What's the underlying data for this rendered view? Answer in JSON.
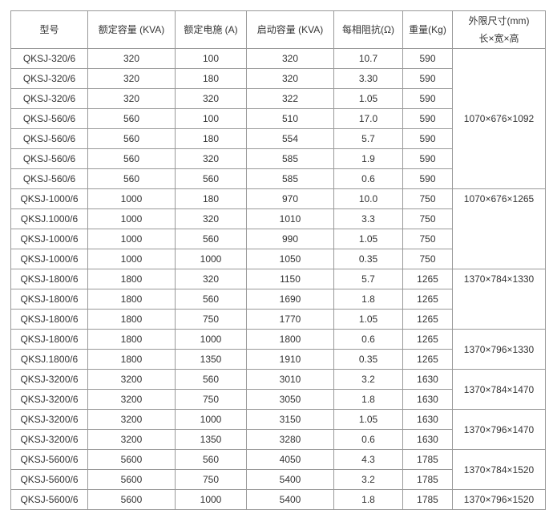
{
  "headers": [
    "型号",
    "额定容量 (KVA)",
    "额定电施 (A)",
    "启动容量 (KVA)",
    "每相阻抗(Ω)",
    "重量(Kg)"
  ],
  "dim_header": {
    "line1": "外限尺寸(mm)",
    "line2": "长×宽×高"
  },
  "rows": [
    [
      "QKSJ-320/6",
      "320",
      "100",
      "320",
      "10.7",
      "590"
    ],
    [
      "QKSJ-320/6",
      "320",
      "180",
      "320",
      "3.30",
      "590"
    ],
    [
      "QKSJ-320/6",
      "320",
      "320",
      "322",
      "1.05",
      "590"
    ],
    [
      "QKSJ-560/6",
      "560",
      "100",
      "510",
      "17.0",
      "590"
    ],
    [
      "QKSJ-560/6",
      "560",
      "180",
      "554",
      "5.7",
      "590"
    ],
    [
      "QKSJ-560/6",
      "560",
      "320",
      "585",
      "1.9",
      "590"
    ],
    [
      "QKSJ-560/6",
      "560",
      "560",
      "585",
      "0.6",
      "590"
    ],
    [
      "QKSJ-1000/6",
      "1000",
      "180",
      "970",
      "10.0",
      "750"
    ],
    [
      "QKSJ.1000/6",
      "1000",
      "320",
      "1010",
      "3.3",
      "750"
    ],
    [
      "QKSJ-1000/6",
      "1000",
      "560",
      "990",
      "1.05",
      "750"
    ],
    [
      "QKSJ-1000/6",
      "1000",
      "1000",
      "1050",
      "0.35",
      "750"
    ],
    [
      "QKSJ-1800/6",
      "1800",
      "320",
      "1150",
      "5.7",
      "1265"
    ],
    [
      "QKSJ-1800/6",
      "1800",
      "560",
      "1690",
      "1.8",
      "1265"
    ],
    [
      "QKSJ-1800/6",
      "1800",
      "750",
      "1770",
      "1.05",
      "1265"
    ],
    [
      "QKSJ-1800/6",
      "1800",
      "1000",
      "1800",
      "0.6",
      "1265"
    ],
    [
      "QKSJ.1800/6",
      "1800",
      "1350",
      "1910",
      "0.35",
      "1265"
    ],
    [
      "QKSJ-3200/6",
      "3200",
      "560",
      "3010",
      "3.2",
      "1630"
    ],
    [
      "QKSJ-3200/6",
      "3200",
      "750",
      "3050",
      "1.8",
      "1630"
    ],
    [
      "QKSJ-3200/6",
      "3200",
      "1000",
      "3150",
      "1.05",
      "1630"
    ],
    [
      "QKSJ-3200/6",
      "3200",
      "1350",
      "3280",
      "0.6",
      "1630"
    ],
    [
      "QKSJ-5600/6",
      "5600",
      "560",
      "4050",
      "4.3",
      "1785"
    ],
    [
      "QKSJ-5600/6",
      "5600",
      "750",
      "5400",
      "3.2",
      "1785"
    ],
    [
      "QKSJ-5600/6",
      "5600",
      "1000",
      "5400",
      "1.8",
      "1785"
    ]
  ],
  "dimensions": [
    {
      "value": "1070×676×1092",
      "rows": 7
    },
    {
      "value": "1070×676×1265",
      "rows": 4,
      "align": "top"
    },
    {
      "value": "1370×784×1330",
      "rows": 3,
      "align": "top"
    },
    {
      "value": "1370×796×1330",
      "rows": 2
    },
    {
      "value": "1370×784×1470",
      "rows": 2
    },
    {
      "value": "1370×796×1470",
      "rows": 2
    },
    {
      "value": "1370×784×1520",
      "rows": 2
    },
    {
      "value": "1370×796×1520",
      "rows": 1
    }
  ]
}
